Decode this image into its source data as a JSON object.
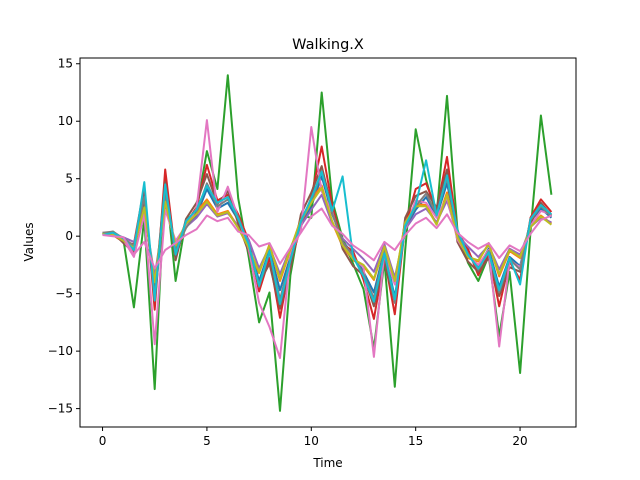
{
  "chart_data": {
    "type": "line",
    "title": "Walking.X",
    "xlabel": "Time",
    "ylabel": "Values",
    "xlim": [
      -1.08,
      22.68
    ],
    "ylim": [
      -16.6,
      15.5
    ],
    "xticks": [
      0,
      5,
      10,
      15,
      20
    ],
    "yticks": [
      -15,
      -10,
      -5,
      0,
      5,
      10,
      15
    ],
    "xtick_labels": [
      "0",
      "5",
      "10",
      "15",
      "20"
    ],
    "ytick_labels": [
      "−15",
      "−10",
      "−5",
      "0",
      "5",
      "10",
      "15"
    ],
    "grid": false,
    "legend": "none",
    "x": [
      0,
      0.5,
      1,
      1.5,
      2,
      2.5,
      3,
      3.5,
      4,
      4.5,
      5,
      5.5,
      6,
      6.5,
      7,
      7.5,
      8,
      8.5,
      9,
      9.5,
      10,
      10.5,
      11,
      11.5,
      12,
      12.5,
      13,
      13.5,
      14,
      14.5,
      15,
      15.5,
      16,
      16.5,
      17,
      17.5,
      18,
      18.5,
      19,
      19.5,
      20,
      20.5,
      21,
      21.5
    ],
    "series": [
      {
        "color": "#1f77b4",
        "values": [
          0.2,
          0.3,
          -0.2,
          -0.9,
          3.8,
          -5.8,
          4.2,
          -1.4,
          0.9,
          1.8,
          4.1,
          2.4,
          2.9,
          1.4,
          -0.6,
          -3.9,
          -1.2,
          -4.7,
          -1.8,
          1.1,
          2.6,
          5.2,
          1.9,
          -0.4,
          -1.6,
          -3.1,
          -4.9,
          -1.2,
          -5.3,
          0.7,
          2.3,
          3.4,
          1.7,
          4.6,
          0.3,
          -1.4,
          -2.7,
          -1.1,
          -4.4,
          -1.8,
          -2.6,
          1.3,
          2.4,
          1.6
        ]
      },
      {
        "color": "#ff7f0e",
        "values": [
          0.1,
          0.2,
          -0.4,
          -1.1,
          2.7,
          -4.2,
          3.1,
          -0.9,
          1.2,
          2.1,
          3.2,
          1.9,
          2.2,
          0.8,
          -1.1,
          -3.2,
          -0.7,
          -3.9,
          -1.2,
          1.5,
          3.1,
          4.4,
          1.2,
          -0.9,
          -2.1,
          -2.6,
          -3.8,
          -0.8,
          -4.1,
          1.3,
          2.8,
          2.7,
          1.1,
          3.8,
          -0.2,
          -1.9,
          -2.2,
          -0.6,
          -3.5,
          -1.3,
          -1.9,
          0.9,
          1.8,
          1.1
        ]
      },
      {
        "color": "#2ca02c",
        "values": [
          0.2,
          0.4,
          -0.3,
          -6.2,
          1.5,
          -13.3,
          5.1,
          -3.9,
          1.4,
          2.2,
          7.4,
          4.1,
          14.0,
          3.3,
          -1.8,
          -7.5,
          -4.9,
          -15.2,
          -3.4,
          1.8,
          1.6,
          12.5,
          3.1,
          -0.2,
          -2.4,
          -4.6,
          -9.8,
          -2.1,
          -13.1,
          -1.2,
          9.3,
          4.9,
          1.8,
          12.2,
          0.6,
          -2.3,
          -3.9,
          -1.7,
          -8.7,
          -3.1,
          -11.9,
          0.4,
          10.5,
          3.6
        ]
      },
      {
        "color": "#d62728",
        "values": [
          0.3,
          0.1,
          -0.5,
          -0.7,
          4.3,
          -6.4,
          5.8,
          -1.8,
          1.1,
          2.5,
          6.2,
          3.1,
          3.6,
          1.9,
          -0.4,
          -4.8,
          -1.9,
          -7.1,
          -2.3,
          0.8,
          3.4,
          7.8,
          2.7,
          -0.7,
          -1.3,
          -3.8,
          -7.2,
          -1.9,
          -6.8,
          0.9,
          4.1,
          4.6,
          2.2,
          6.9,
          0.4,
          -1.1,
          -3.4,
          -1.5,
          -6.1,
          -2.2,
          -3.8,
          1.6,
          3.2,
          2.1
        ]
      },
      {
        "color": "#9467bd",
        "values": [
          0.1,
          0.2,
          -0.1,
          -0.5,
          2.1,
          -3.5,
          2.6,
          -0.6,
          0.8,
          1.6,
          2.8,
          1.7,
          2.0,
          0.9,
          -0.3,
          -2.8,
          -0.9,
          -3.3,
          -1.0,
          0.9,
          2.3,
          3.6,
          1.1,
          -0.2,
          -1.1,
          -2.0,
          -3.1,
          -0.7,
          -3.6,
          0.6,
          1.9,
          2.4,
          1.2,
          3.1,
          0.1,
          -0.9,
          -1.8,
          -0.8,
          -2.9,
          -1.1,
          -1.6,
          0.8,
          1.6,
          1.2
        ]
      },
      {
        "color": "#8c564b",
        "values": [
          0.2,
          0.3,
          -0.6,
          -1.4,
          3.1,
          -4.9,
          4.7,
          -2.1,
          1.5,
          2.9,
          5.4,
          2.8,
          3.9,
          1.1,
          -1.4,
          -4.1,
          -2.4,
          -6.3,
          -2.8,
          1.9,
          3.8,
          6.1,
          2.3,
          -1.1,
          -2.6,
          -3.4,
          -6.1,
          -2.3,
          -5.7,
          1.6,
          3.5,
          3.9,
          2.5,
          5.8,
          -0.5,
          -2.2,
          -3.1,
          -1.9,
          -5.2,
          -2.7,
          -3.1,
          1.1,
          2.9,
          1.8
        ]
      },
      {
        "color": "#e377c2",
        "values": [
          0.1,
          0.2,
          -0.3,
          -1.8,
          1.9,
          -9.4,
          2.3,
          -0.4,
          0.9,
          2.4,
          10.1,
          2.1,
          4.3,
          1.6,
          -1.1,
          -5.8,
          -7.9,
          -10.6,
          -1.6,
          0.5,
          9.5,
          3.9,
          2.1,
          -0.8,
          -1.9,
          -2.7,
          -10.5,
          -1.4,
          -4.2,
          0.6,
          3.1,
          2.9,
          1.6,
          3.4,
          -0.3,
          -1.7,
          -2.5,
          -1.2,
          -9.6,
          -2.1,
          -2.7,
          0.9,
          2.2,
          1.9
        ]
      },
      {
        "color": "#7f7f7f",
        "values": [
          0.3,
          0.4,
          -0.2,
          -0.8,
          3.4,
          -5.2,
          3.8,
          -1.2,
          0.7,
          2.0,
          4.6,
          2.6,
          3.2,
          1.7,
          -0.8,
          -4.4,
          -1.4,
          -5.5,
          -2.0,
          1.2,
          2.9,
          5.7,
          2.0,
          -0.5,
          -1.7,
          -3.3,
          -5.4,
          -1.3,
          -5.8,
          0.8,
          2.6,
          3.7,
          1.9,
          5.1,
          0.2,
          -1.5,
          -2.9,
          -1.3,
          -4.9,
          -2.0,
          -2.9,
          1.4,
          2.6,
          1.7
        ]
      },
      {
        "color": "#bcbd22",
        "values": [
          0.2,
          0.1,
          -0.4,
          -1.0,
          2.5,
          -4.0,
          3.0,
          -0.8,
          1.1,
          1.9,
          3.0,
          1.8,
          2.1,
          0.7,
          -1.0,
          -3.1,
          -0.8,
          -3.7,
          -1.1,
          1.4,
          2.9,
          4.2,
          1.3,
          -0.8,
          -2.0,
          -2.5,
          -3.7,
          -0.9,
          -3.9,
          1.2,
          2.6,
          2.6,
          1.0,
          3.6,
          -0.1,
          -1.8,
          -2.1,
          -0.7,
          -3.3,
          -1.2,
          -1.8,
          0.8,
          1.7,
          1.0
        ]
      },
      {
        "color": "#17becf",
        "values": [
          0.1,
          0.3,
          -0.2,
          -1.2,
          4.7,
          -5.6,
          4.5,
          -1.6,
          1.3,
          2.3,
          4.4,
          2.9,
          3.4,
          1.5,
          -0.7,
          -4.3,
          -1.3,
          -5.9,
          -2.1,
          1.3,
          3.3,
          5.6,
          2.2,
          5.2,
          -1.8,
          -3.5,
          -5.7,
          -1.5,
          -5.5,
          0.9,
          2.7,
          6.6,
          1.8,
          5.3,
          0.5,
          -1.6,
          -2.8,
          -1.4,
          -4.7,
          -1.9,
          -4.2,
          1.5,
          2.7,
          1.9
        ]
      },
      {
        "color": "#e377c2",
        "values": [
          0.1,
          0.0,
          -0.1,
          -1.6,
          -0.5,
          -2.8,
          -1.2,
          -0.6,
          0.1,
          0.6,
          1.8,
          1.3,
          1.6,
          0.4,
          0.1,
          -0.9,
          -0.6,
          -2.4,
          -1.0,
          0.3,
          1.7,
          2.4,
          0.9,
          0.2,
          -0.8,
          -1.4,
          -2.1,
          -0.5,
          -1.2,
          0.1,
          1.1,
          1.6,
          0.7,
          1.9,
          0.3,
          -0.5,
          -1.1,
          -0.6,
          -1.9,
          -0.8,
          -1.3,
          0.2,
          1.4,
          1.8
        ]
      }
    ]
  }
}
